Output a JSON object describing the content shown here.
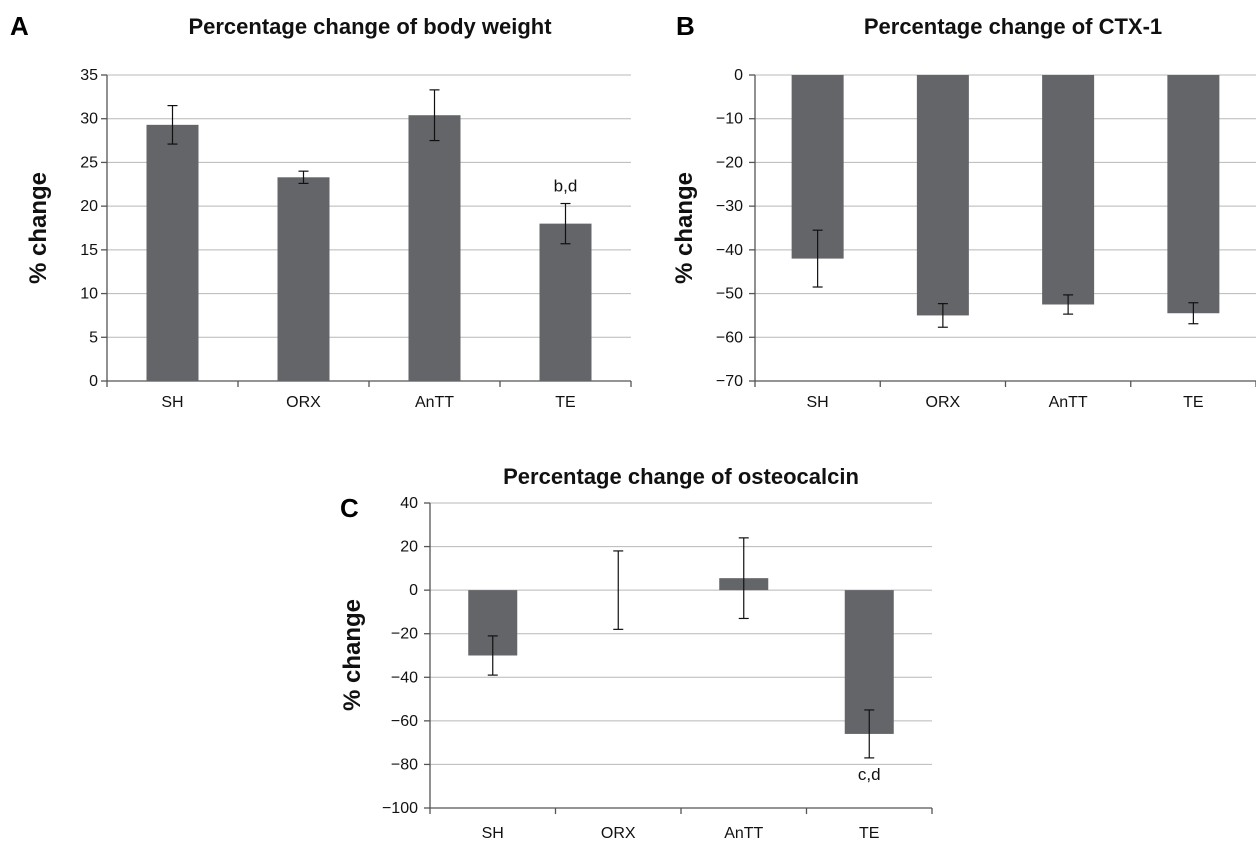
{
  "chart_data": [
    {
      "panel": "A",
      "type": "bar",
      "title": "Percentage change of body weight",
      "ylabel": "% change",
      "xlabel": "",
      "categories": [
        "SH",
        "ORX",
        "AnTT",
        "TE"
      ],
      "values": [
        29.3,
        23.3,
        30.4,
        18.0
      ],
      "errors": [
        2.2,
        0.7,
        2.9,
        2.3
      ],
      "ylim": [
        0,
        35
      ],
      "yticks": [
        0,
        5,
        10,
        15,
        20,
        25,
        30,
        35
      ],
      "grid": true,
      "annotations": [
        {
          "category": "TE",
          "text": "b,d",
          "position": "above"
        }
      ],
      "color": "#646569"
    },
    {
      "panel": "B",
      "type": "bar",
      "title": "Percentage change of CTX-1",
      "ylabel": "% change",
      "xlabel": "",
      "categories": [
        "SH",
        "ORX",
        "AnTT",
        "TE"
      ],
      "values": [
        -42.0,
        -55.0,
        -52.5,
        -54.5
      ],
      "errors": [
        6.5,
        2.7,
        2.2,
        2.4
      ],
      "ylim": [
        -70,
        0
      ],
      "yticks": [
        0,
        -10,
        -20,
        -30,
        -40,
        -50,
        -60,
        -70
      ],
      "ytick_labels": [
        "0",
        "−10",
        "−20",
        "−30",
        "−40",
        "−50",
        "−60",
        "−70"
      ],
      "grid": true,
      "annotations": [],
      "color": "#646569"
    },
    {
      "panel": "C",
      "type": "bar",
      "title": "Percentage change of osteocalcin",
      "ylabel": "% change",
      "xlabel": "",
      "categories": [
        "SH",
        "ORX",
        "AnTT",
        "TE"
      ],
      "values": [
        -30.0,
        0.0,
        5.5,
        -66.0
      ],
      "errors": [
        9.0,
        18.0,
        18.5,
        11.0
      ],
      "ylim": [
        -100,
        40
      ],
      "yticks": [
        40,
        20,
        0,
        -20,
        -40,
        -60,
        -80,
        -100
      ],
      "ytick_labels": [
        "40",
        "20",
        "0",
        "−20",
        "−40",
        "−60",
        "−80",
        "−100"
      ],
      "grid": true,
      "annotations": [
        {
          "category": "TE",
          "text": "c,d",
          "position": "below"
        }
      ],
      "color": "#646569"
    }
  ]
}
